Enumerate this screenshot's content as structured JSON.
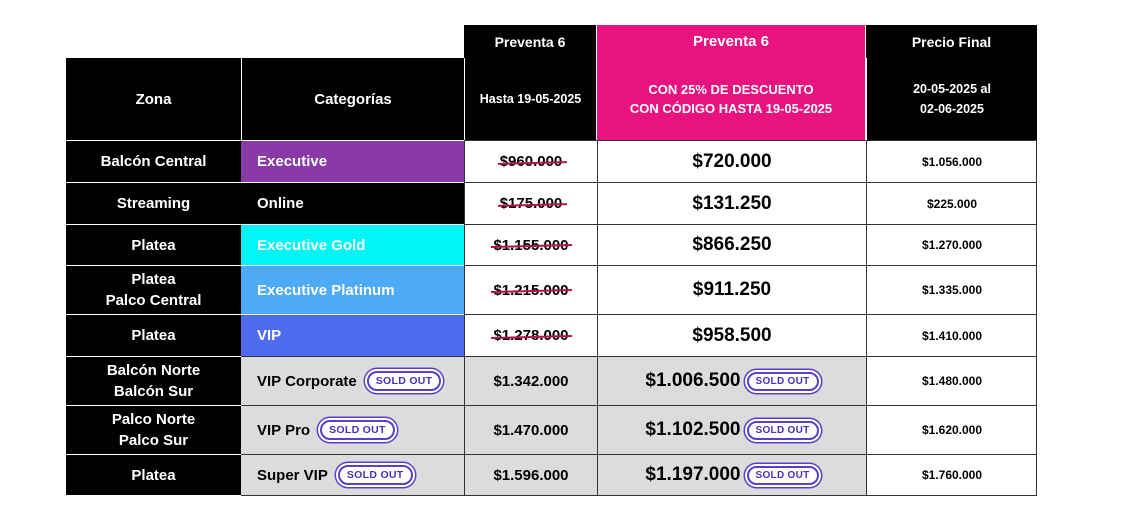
{
  "header": {
    "preventa_label": "Preventa 6",
    "preventa_pink_label": "Preventa 6",
    "precio_final_label": "Precio Final",
    "zona": "Zona",
    "categorias": "Categorías",
    "hasta": "Hasta 19-05-2025",
    "descuento_line1": "CON 25% DE DESCUENTO",
    "descuento_line2": "CON CÓDIGO HASTA 19-05-2025",
    "final_line1": "20-05-2025 al",
    "final_line2": "02-06-2025"
  },
  "sold_out": "SOLD OUT",
  "rows": [
    {
      "zone1": "Balcón Central",
      "zone2": "",
      "category": "Executive",
      "color": "#8a3aa6",
      "preventa": "$960.000",
      "descuento": "$720.000",
      "final": "$1.056.000"
    },
    {
      "zone1": "Streaming",
      "zone2": "",
      "category": "Online",
      "color": "#000000",
      "preventa": "$175.000",
      "descuento": "$131.250",
      "final": "$225.000"
    },
    {
      "zone1": "Platea",
      "zone2": "",
      "category": "Executive Gold",
      "color": "#00f5f5",
      "preventa": "$1.155.000",
      "descuento": "$866.250",
      "final": "$1.270.000"
    },
    {
      "zone1": "Platea",
      "zone2": "Palco Central",
      "category": "Executive Platinum",
      "color": "#4daaf5",
      "preventa": "$1.215.000",
      "descuento": "$911.250",
      "final": "$1.335.000"
    },
    {
      "zone1": "Platea",
      "zone2": "",
      "category": "VIP",
      "color": "#4f6bef",
      "preventa": "$1.278.000",
      "descuento": "$958.500",
      "final": "$1.410.000"
    },
    {
      "zone1": "Balcón Norte",
      "zone2": "Balcón Sur",
      "category": "VIP Corporate",
      "color": "#dcdcdc",
      "preventa": "$1.342.000",
      "descuento": "$1.006.500",
      "final": "$1.480.000"
    },
    {
      "zone1": "Palco Norte",
      "zone2": "Palco Sur",
      "category": "VIP Pro",
      "color": "#dcdcdc",
      "preventa": "$1.470.000",
      "descuento": "$1.102.500",
      "final": "$1.620.000"
    },
    {
      "zone1": "Platea",
      "zone2": "",
      "category": "Super VIP",
      "color": "#dcdcdc",
      "preventa": "$1.596.000",
      "descuento": "$1.197.000",
      "final": "$1.760.000"
    }
  ]
}
